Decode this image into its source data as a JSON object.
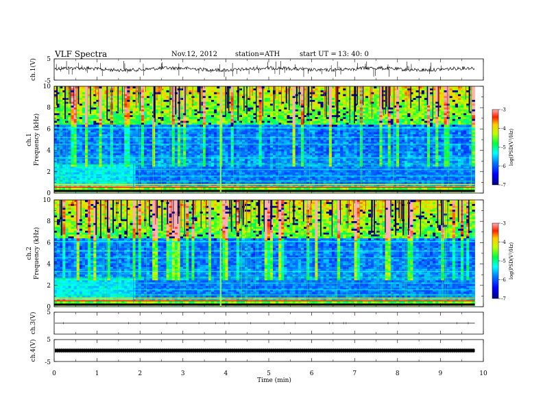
{
  "header": {
    "title": "VLF  Spectra",
    "date": "Nov.12, 2012",
    "station": "station=ATH",
    "start_label": "start  UT  =",
    "start_time": "13: 40: 0"
  },
  "chart_data": [
    {
      "type": "line",
      "name": "ch1-waveform",
      "ylabel": "ch.1(V)",
      "ylim": [
        -5,
        5
      ],
      "yticks": [
        "5",
        "-5"
      ],
      "xlim": [
        0,
        10
      ],
      "data_end_min": 9.8,
      "baseline": 0.2
    },
    {
      "type": "heatmap",
      "name": "ch1-spectrogram",
      "ylabel": "ch.1\nFrequency  (kHz)",
      "ylabel_line1": "ch.1",
      "ylabel_line2": "Frequency  (kHz)",
      "ylim": [
        0,
        10
      ],
      "yticks": [
        "0",
        "2",
        "4",
        "6",
        "8",
        "10"
      ],
      "xlim": [
        0,
        10
      ],
      "data_end_min": 9.8,
      "colorbar": {
        "label": "log(PSD(V²/Hz)",
        "range": [
          -7,
          -3
        ],
        "ticks": [
          "-3",
          "-4",
          "-5",
          "-6",
          "-7"
        ]
      }
    },
    {
      "type": "heatmap",
      "name": "ch2-spectrogram",
      "ylabel": "ch.2\nFrequency  (kHz)",
      "ylabel_line1": "ch.2",
      "ylabel_line2": "Frequency  (kHz)",
      "ylim": [
        0,
        10
      ],
      "yticks": [
        "0",
        "2",
        "4",
        "6",
        "8",
        "10"
      ],
      "xlim": [
        0,
        10
      ],
      "data_end_min": 9.8,
      "colorbar": {
        "label": "log(PSD(V²/Hz)",
        "range": [
          -7,
          -3
        ],
        "ticks": [
          "-3",
          "-4",
          "-5",
          "-6",
          "-7"
        ]
      }
    },
    {
      "type": "line",
      "name": "ch3-waveform",
      "ylabel": "ch.3(V)",
      "ylim": [
        -5,
        5
      ],
      "yticks": [
        "5"
      ],
      "xlim": [
        0,
        10
      ],
      "data_end_min": 9.8,
      "baseline": 0.0
    },
    {
      "type": "line",
      "name": "ch4-waveform",
      "ylabel": "ch.4(V)",
      "ylim": [
        -5,
        5
      ],
      "yticks": [
        "5",
        "-5"
      ],
      "xlim": [
        0,
        10
      ],
      "data_end_min": 9.8,
      "baseline": 0.0
    }
  ],
  "x_axis": {
    "label": "Time  (min)",
    "ticks": [
      "0",
      "1",
      "2",
      "3",
      "4",
      "5",
      "6",
      "7",
      "8",
      "9",
      "10"
    ]
  }
}
